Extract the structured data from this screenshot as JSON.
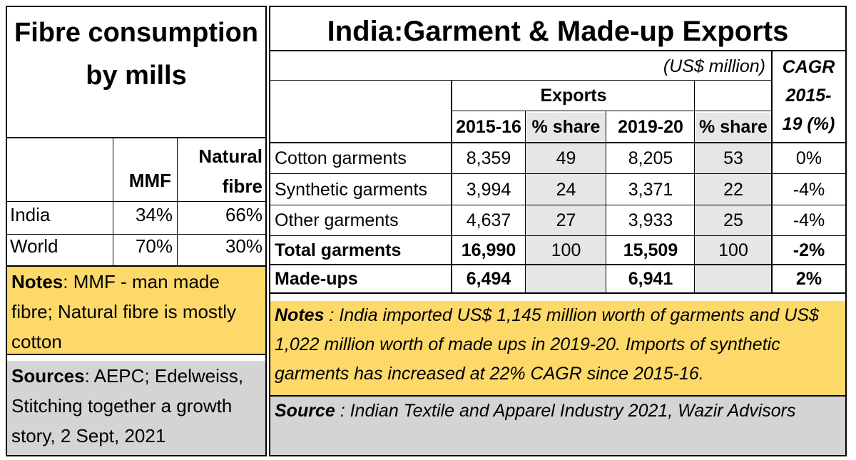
{
  "left": {
    "title": "Fibre consumption by mills",
    "col_mmf": "MMF",
    "col_natural_1": "Natural",
    "col_natural_2": "fibre",
    "rows": [
      {
        "label": "India",
        "mmf": "34%",
        "natural": "66%"
      },
      {
        "label": "World",
        "mmf": "70%",
        "natural": "30%"
      }
    ],
    "notes_label": "Notes",
    "notes_text": ": MMF - man made fibre; Natural fibre is mostly cotton",
    "sources_label": "Sources",
    "sources_text": ": AEPC; Edelweiss, Stitching together a growth story, 2 Sept, 2021"
  },
  "right": {
    "title": "India:Garment & Made-up Exports",
    "unit": "(US$ million)",
    "cagr_1": "CAGR",
    "cagr_2": "2015-",
    "cagr_3": "19 (%)",
    "exports": "Exports",
    "h_2015": "2015-16",
    "h_share1": "% share",
    "h_2019": "2019-20",
    "h_share2": "% share",
    "rows": [
      {
        "label": "Cotton garments",
        "v2015": "8,359",
        "s1": "49",
        "v2019": "8,205",
        "s2": "53",
        "cagr": "0%"
      },
      {
        "label": "Synthetic garments",
        "v2015": "3,994",
        "s1": "24",
        "v2019": "3,371",
        "s2": "22",
        "cagr": "-4%"
      },
      {
        "label": "Other garments",
        "v2015": "4,637",
        "s1": "27",
        "v2019": "3,933",
        "s2": "25",
        "cagr": "-4%"
      },
      {
        "label": "Total garments",
        "v2015": "16,990",
        "s1": "100",
        "v2019": "15,509",
        "s2": "100",
        "cagr": "-2%"
      },
      {
        "label": "Made-ups",
        "v2015": "6,494",
        "s1": "",
        "v2019": "6,941",
        "s2": "",
        "cagr": "2%"
      }
    ],
    "notes_label": "Notes",
    "notes_text": " : India imported US$ 1,145 million worth of garments and US$ 1,022 million worth of made ups in 2019-20. Imports of synthetic garments has increased at 22% CAGR since 2015-16.",
    "source_label": "Source",
    "source_text": " : Indian Textile and Apparel Industry 2021, Wazir Advisors"
  }
}
